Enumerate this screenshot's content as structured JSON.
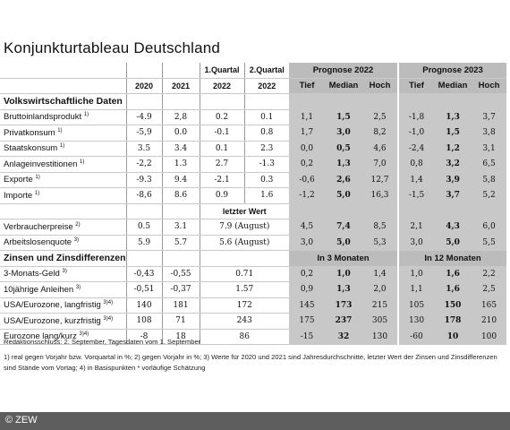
{
  "title": "Konjunkturtableau Deutschland",
  "header": {
    "q1": "1.Quartal",
    "q2": "2.Quartal",
    "prog22": "Prognose 2022",
    "prog23": "Prognose 2023",
    "y2020": "2020",
    "y2021": "2021",
    "y2022a": "2022",
    "y2022b": "2022",
    "tief1": "Tief",
    "median1": "Median",
    "hoch1": "Hoch",
    "tief2": "Tief",
    "median2": "Median",
    "hoch2": "Hoch"
  },
  "sections": {
    "volks": "Volkswirtschaftliche Daten",
    "letzter": "letzter Wert",
    "zinsen": "Zinsen und Zinsdifferenzen",
    "in3": "In 3 Monaten",
    "in12": "In 12 Monaten"
  },
  "rows": [
    {
      "label": "Bruttoinlandsprodukt",
      "sup": "1)",
      "v": [
        "-4.9",
        "2,8",
        "0.2",
        "0.1",
        "1,1",
        "1,5",
        "2,5",
        "-1,8",
        "1,3",
        "3,7"
      ]
    },
    {
      "label": "Privatkonsum",
      "sup": "1)",
      "v": [
        "-5,9",
        "0.0",
        "-0.1",
        "0.8",
        "1,7",
        "3,0",
        "8,2",
        "-1,0",
        "1,5",
        "3,8"
      ]
    },
    {
      "label": "Staatskonsum",
      "sup": "1)",
      "v": [
        "3.5",
        "3.4",
        "0.1",
        "2.3",
        "0,0",
        "0,5",
        "4,6",
        "-2,4",
        "1,2",
        "3,1"
      ]
    },
    {
      "label": "Anlageinvestitionen",
      "sup": "1)",
      "v": [
        "-2,2",
        "1.3",
        "2.7",
        "-1.3",
        "0,2",
        "1,3",
        "7,0",
        "0,8",
        "3,2",
        "6,5"
      ]
    },
    {
      "label": "Exporte",
      "sup": "1)",
      "v": [
        "-9.3",
        "9.4",
        "-2.1",
        "0.3",
        "-0,6",
        "2,6",
        "12,7",
        "1,4",
        "3,9",
        "5,8"
      ]
    },
    {
      "label": "Importe",
      "sup": "1)",
      "v": [
        "-8,6",
        "8.6",
        "0.9",
        "1.6",
        "-1,2",
        "5,0",
        "16,3",
        "-1,5",
        "3,7",
        "5,2"
      ]
    }
  ],
  "rows2": [
    {
      "label": "Verbraucherpreise",
      "sup": "2)",
      "v": [
        "0.5",
        "3.1",
        "7.9 (August)",
        "4,5",
        "7,4",
        "8,5",
        "2,1",
        "4,3",
        "6,0"
      ]
    },
    {
      "label": "Arbeitslosenquote",
      "sup": "3)",
      "v": [
        "5.9",
        "5.7",
        "5.6 (August)",
        "3,0",
        "5,0",
        "5,3",
        "3,0",
        "5,0",
        "5,5"
      ]
    }
  ],
  "rows3": [
    {
      "label": "3-Monats-Geld",
      "sup": "3)",
      "v": [
        "-0,43",
        "-0,55",
        "0.71",
        "0,2",
        "1,0",
        "1,4",
        "1,0",
        "1,6",
        "2,2"
      ]
    },
    {
      "label": "10jährige Anleihen",
      "sup": "3)",
      "v": [
        "-0,51",
        "-0,37",
        "1.57",
        "0,9",
        "1,3",
        "2,0",
        "1,1",
        "1,6",
        "2,5"
      ]
    },
    {
      "label": "USA/Eurozone, langfristig",
      "sup": "3)4)",
      "v": [
        "140",
        "181",
        "172",
        "145",
        "173",
        "215",
        "105",
        "150",
        "165"
      ]
    },
    {
      "label": "USA/Eurozone, kurzfristig",
      "sup": "3)4)",
      "v": [
        "108",
        "71",
        "243",
        "175",
        "237",
        "305",
        "130",
        "178",
        "210"
      ]
    },
    {
      "label": "Eurozone lang/kurz",
      "sup": "3)4)",
      "v": [
        "-8",
        "18",
        "86",
        "-15",
        "32",
        "130",
        "-60",
        "10",
        "100"
      ]
    }
  ],
  "footer": {
    "line1": "Redaktionsschluss:  2. September, Tagesdaten vom 1. September",
    "line2": "1) real gegen Vorjahr bzw. Vorquartal in %; 2) gegen Vorjahr in %; 3) Werte für 2020 und 2021 sind Jahresdurchschnitte, letzter Wert der Zinsen und Zinsdifferenzen sind Stände vom Vortag; 4) in Basispunkten * vorläufige Schätzung"
  },
  "copyright": "© ZEW"
}
